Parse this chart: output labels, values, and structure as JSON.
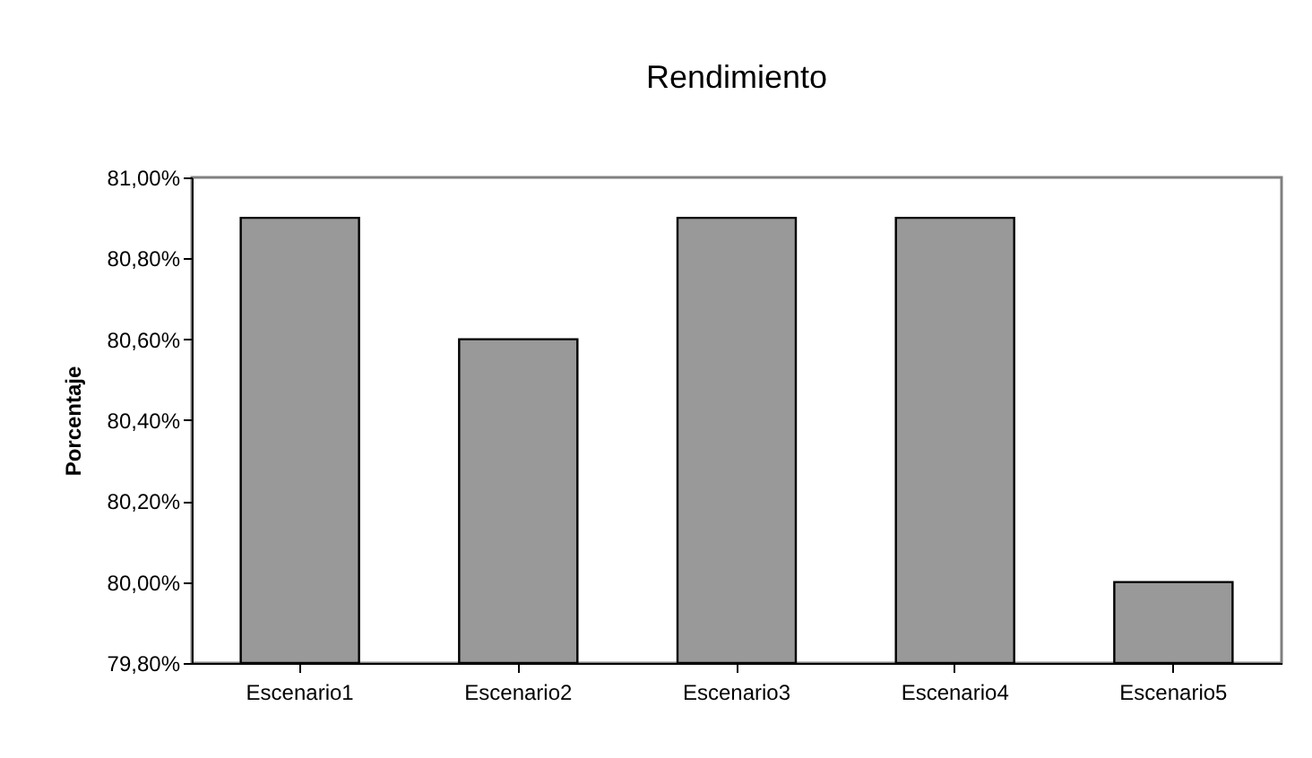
{
  "chart_data": {
    "type": "bar",
    "title": "Rendimiento",
    "ylabel": "Porcentaje",
    "categories": [
      "Escenario1",
      "Escenario2",
      "Escenario3",
      "Escenario4",
      "Escenario5"
    ],
    "values": [
      80.9,
      80.6,
      80.9,
      80.9,
      80.0
    ],
    "color": "#999999",
    "ylim": [
      79.8,
      81.0
    ],
    "yticks": [
      {
        "value": 79.8,
        "label": "79,80%"
      },
      {
        "value": 80.0,
        "label": "80,00%"
      },
      {
        "value": 80.2,
        "label": "80,20%"
      },
      {
        "value": 80.4,
        "label": "80,40%"
      },
      {
        "value": 80.6,
        "label": "80,60%"
      },
      {
        "value": 80.8,
        "label": "80,80%"
      },
      {
        "value": 81.0,
        "label": "81,00%"
      }
    ],
    "grid": false
  }
}
